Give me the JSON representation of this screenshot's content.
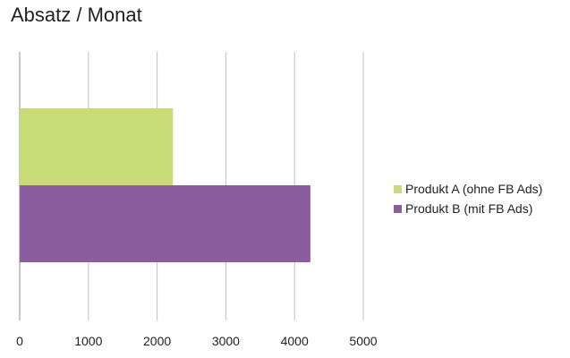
{
  "chart_data": {
    "type": "bar",
    "orientation": "horizontal",
    "title": "Absatz / Monat",
    "xlabel": "",
    "ylabel": "",
    "xlim": [
      0,
      5000
    ],
    "ticks": [
      0,
      1000,
      2000,
      3000,
      4000,
      5000
    ],
    "grid": true,
    "legend_position": "right",
    "series": [
      {
        "name": "Produkt A (ohne FB Ads)",
        "values": [
          2230
        ],
        "color": "#C9DB77"
      },
      {
        "name": "Produkt B (mit FB Ads)",
        "values": [
          4230
        ],
        "color": "#8B5C9E"
      }
    ]
  }
}
